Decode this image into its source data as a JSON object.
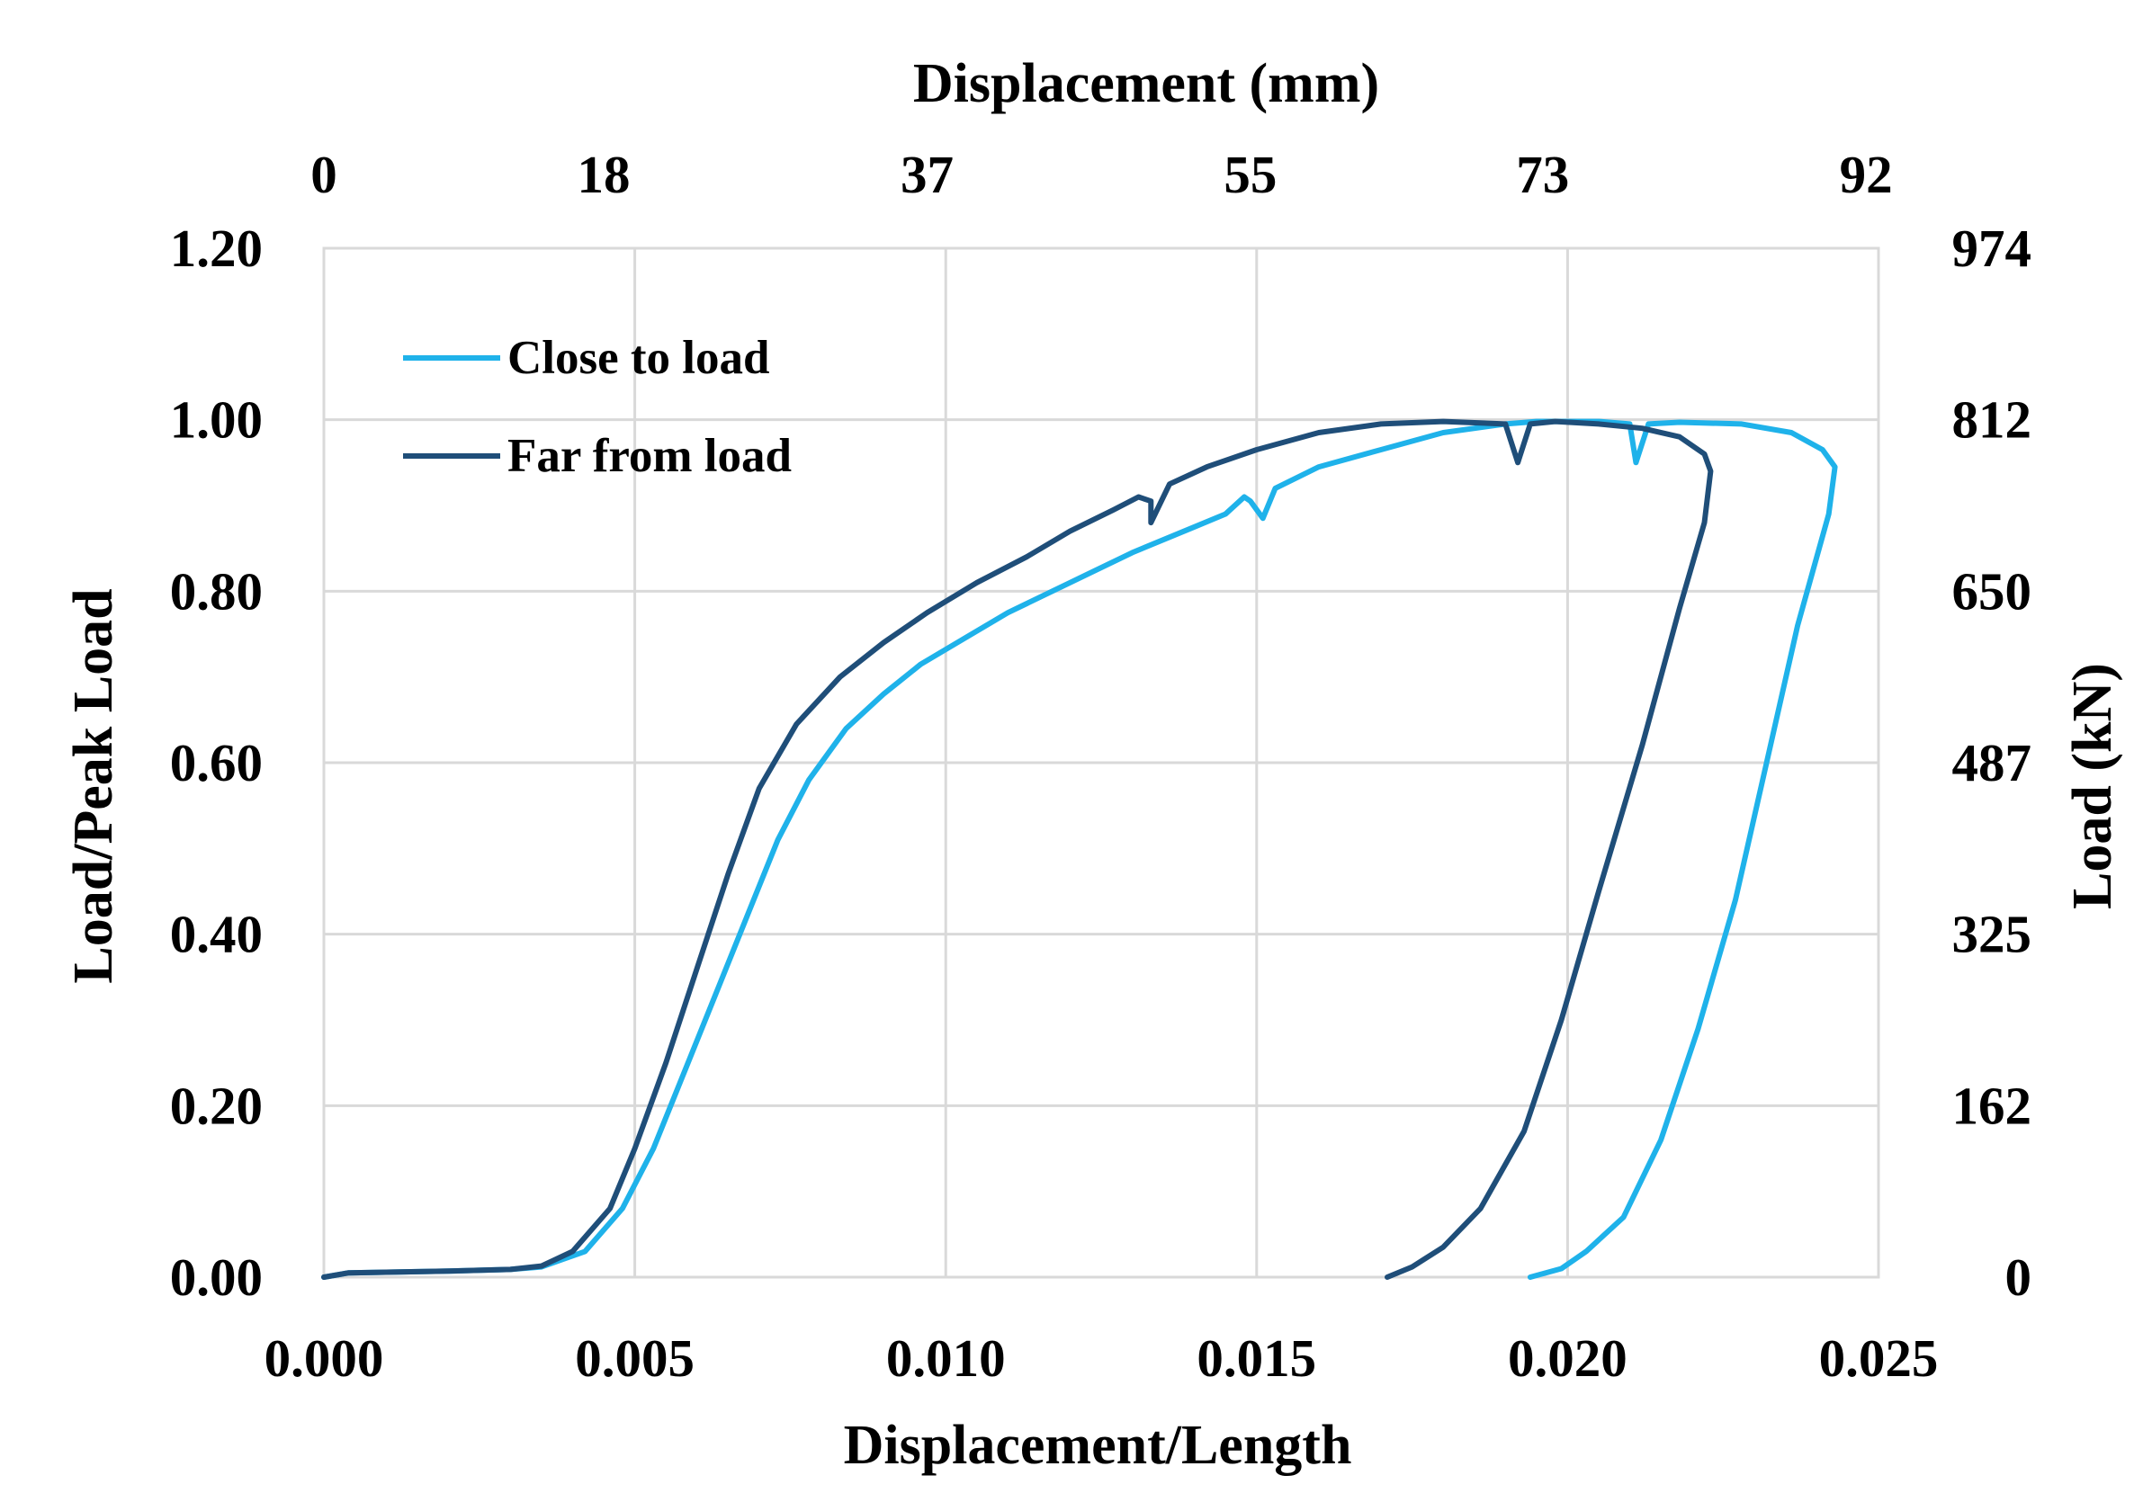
{
  "chart_data": {
    "type": "line",
    "title": "",
    "xlabel": "Displacement/Length",
    "ylabel": "Load/Peak Load",
    "x2label": "Displacement (mm)",
    "y2label": "Load (kN)",
    "xlim": [
      0.0,
      0.025
    ],
    "ylim": [
      0.0,
      1.2
    ],
    "x_ticks": [
      "0.000",
      "0.005",
      "0.010",
      "0.015",
      "0.020",
      "0.025"
    ],
    "y_ticks": [
      "0.00",
      "0.20",
      "0.40",
      "0.60",
      "0.80",
      "1.00",
      "1.20"
    ],
    "x2_ticks": [
      {
        "value": 0.0,
        "label": "0"
      },
      {
        "value": 0.0045,
        "label": "18"
      },
      {
        "value": 0.0097,
        "label": "37"
      },
      {
        "value": 0.0149,
        "label": "55"
      },
      {
        "value": 0.0196,
        "label": "73"
      },
      {
        "value": 0.0248,
        "label": "92"
      }
    ],
    "y2_ticks": [
      "0",
      "162",
      "325",
      "487",
      "650",
      "812",
      "974"
    ],
    "grid": true,
    "legend_position": "top-left",
    "series": [
      {
        "name": "Close to load",
        "color": "#1fb2ea",
        "points": [
          [
            0.0,
            0.0
          ],
          [
            0.0004,
            0.005
          ],
          [
            0.002,
            0.007
          ],
          [
            0.003,
            0.009
          ],
          [
            0.0035,
            0.012
          ],
          [
            0.0042,
            0.03
          ],
          [
            0.0048,
            0.08
          ],
          [
            0.0053,
            0.15
          ],
          [
            0.0058,
            0.24
          ],
          [
            0.0063,
            0.33
          ],
          [
            0.0068,
            0.42
          ],
          [
            0.0073,
            0.51
          ],
          [
            0.0078,
            0.58
          ],
          [
            0.0084,
            0.64
          ],
          [
            0.009,
            0.68
          ],
          [
            0.0096,
            0.715
          ],
          [
            0.0103,
            0.745
          ],
          [
            0.011,
            0.775
          ],
          [
            0.012,
            0.81
          ],
          [
            0.013,
            0.845
          ],
          [
            0.014,
            0.875
          ],
          [
            0.0145,
            0.89
          ],
          [
            0.0148,
            0.91
          ],
          [
            0.0149,
            0.905
          ],
          [
            0.0151,
            0.885
          ],
          [
            0.0153,
            0.92
          ],
          [
            0.016,
            0.945
          ],
          [
            0.017,
            0.965
          ],
          [
            0.018,
            0.985
          ],
          [
            0.019,
            0.995
          ],
          [
            0.0195,
            0.998
          ],
          [
            0.0205,
            0.998
          ],
          [
            0.021,
            0.995
          ],
          [
            0.0211,
            0.95
          ],
          [
            0.0213,
            0.995
          ],
          [
            0.0218,
            0.997
          ],
          [
            0.0228,
            0.995
          ],
          [
            0.0236,
            0.985
          ],
          [
            0.0241,
            0.965
          ],
          [
            0.0243,
            0.945
          ],
          [
            0.0242,
            0.89
          ],
          [
            0.0237,
            0.76
          ],
          [
            0.0232,
            0.6
          ],
          [
            0.0227,
            0.44
          ],
          [
            0.0221,
            0.29
          ],
          [
            0.0215,
            0.16
          ],
          [
            0.0209,
            0.07
          ],
          [
            0.0203,
            0.03
          ],
          [
            0.0199,
            0.01
          ],
          [
            0.0194,
            0.0
          ]
        ]
      },
      {
        "name": "Far from load",
        "color": "#1f4e79",
        "points": [
          [
            0.0,
            0.0
          ],
          [
            0.0004,
            0.005
          ],
          [
            0.002,
            0.007
          ],
          [
            0.003,
            0.009
          ],
          [
            0.0035,
            0.013
          ],
          [
            0.004,
            0.03
          ],
          [
            0.0046,
            0.08
          ],
          [
            0.005,
            0.15
          ],
          [
            0.0055,
            0.25
          ],
          [
            0.006,
            0.36
          ],
          [
            0.0065,
            0.47
          ],
          [
            0.007,
            0.57
          ],
          [
            0.0076,
            0.645
          ],
          [
            0.0083,
            0.7
          ],
          [
            0.009,
            0.74
          ],
          [
            0.0097,
            0.775
          ],
          [
            0.0105,
            0.81
          ],
          [
            0.0113,
            0.84
          ],
          [
            0.012,
            0.87
          ],
          [
            0.0127,
            0.895
          ],
          [
            0.0131,
            0.91
          ],
          [
            0.0133,
            0.905
          ],
          [
            0.0133,
            0.88
          ],
          [
            0.0136,
            0.925
          ],
          [
            0.0142,
            0.945
          ],
          [
            0.015,
            0.965
          ],
          [
            0.016,
            0.985
          ],
          [
            0.017,
            0.995
          ],
          [
            0.018,
            0.998
          ],
          [
            0.019,
            0.995
          ],
          [
            0.0192,
            0.95
          ],
          [
            0.0194,
            0.995
          ],
          [
            0.0198,
            0.998
          ],
          [
            0.0205,
            0.995
          ],
          [
            0.0212,
            0.99
          ],
          [
            0.0218,
            0.98
          ],
          [
            0.0222,
            0.96
          ],
          [
            0.0223,
            0.94
          ],
          [
            0.0222,
            0.88
          ],
          [
            0.0218,
            0.78
          ],
          [
            0.0212,
            0.62
          ],
          [
            0.0205,
            0.45
          ],
          [
            0.0199,
            0.3
          ],
          [
            0.0193,
            0.17
          ],
          [
            0.0186,
            0.08
          ],
          [
            0.018,
            0.035
          ],
          [
            0.0175,
            0.012
          ],
          [
            0.0171,
            0.0
          ]
        ]
      }
    ]
  }
}
